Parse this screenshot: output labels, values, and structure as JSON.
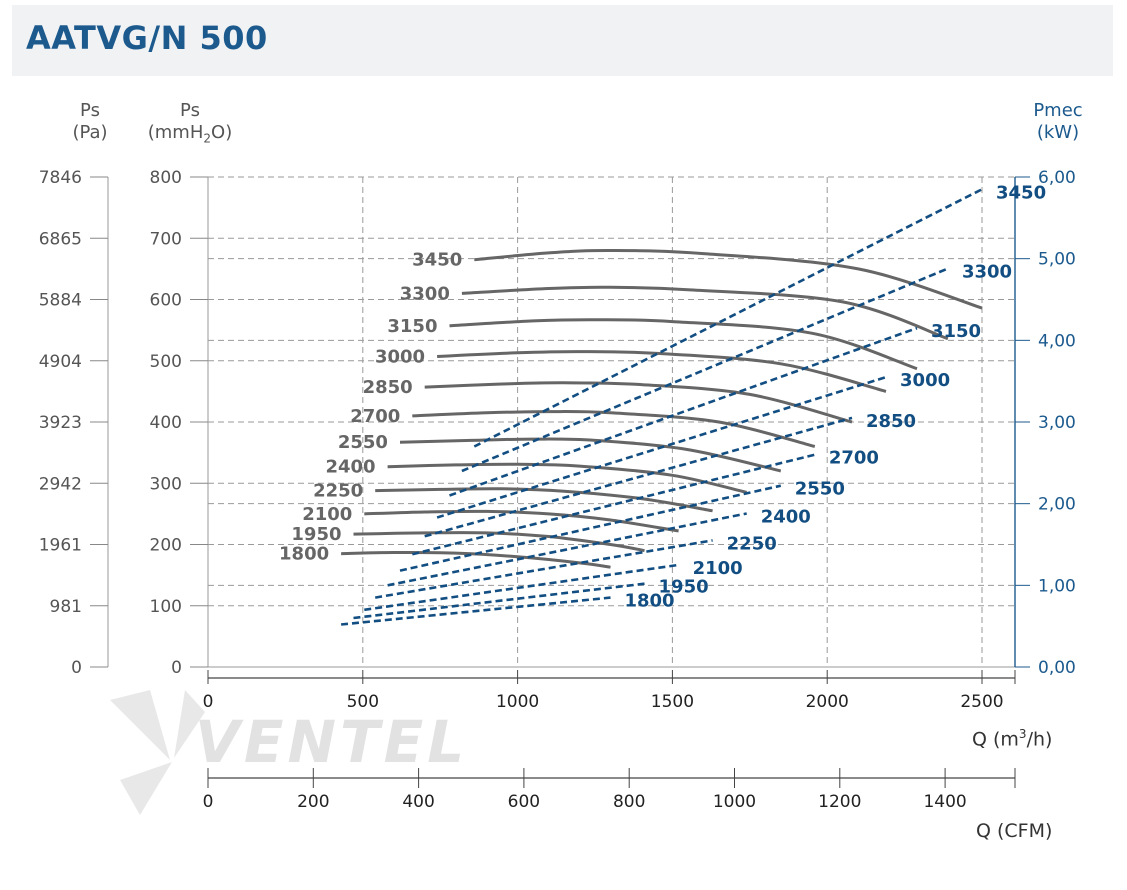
{
  "header": {
    "title": "AATVG/N 500"
  },
  "units": {
    "pa_name": "Ps",
    "pa_unit": "(Pa)",
    "mm_name": "Ps",
    "mm_unit_pre": "(mmH",
    "mm_unit_sub": "2",
    "mm_unit_post": "O)",
    "kw_name": "Pmec",
    "kw_unit": "(kW)",
    "q_m3h_pre": "Q (m",
    "q_m3h_sup": "3",
    "q_m3h_post": "/h)",
    "q_cfm": "Q (CFM)"
  },
  "watermark": {
    "text": "VENTEL"
  },
  "colors": {
    "title": "#1c5a8e",
    "pressure_curve": "#666666",
    "power_curve": "#124e82",
    "grid": "#9a9a9a"
  },
  "chart_data": {
    "type": "line",
    "title": "AATVG/N 500",
    "xlabel": "Q (m3/h)",
    "xlabel_secondary": "Q (CFM)",
    "ylabel_left_primary": "Ps (mmH2O)",
    "ylabel_left_secondary": "Ps (Pa)",
    "ylabel_right": "Pmec (kW)",
    "xlim": [
      0,
      2600
    ],
    "ylim": [
      0,
      800
    ],
    "y2lim": [
      0,
      6
    ],
    "grid": true,
    "x_ticks": [
      "0",
      "500",
      "1000",
      "1500",
      "2000",
      "2500"
    ],
    "x_tick_values": [
      0,
      500,
      1000,
      1500,
      2000,
      2500
    ],
    "cfm_ticks": [
      "0",
      "200",
      "400",
      "600",
      "800",
      "1000",
      "1200",
      "1400"
    ],
    "cfm_tick_values": [
      0,
      200,
      400,
      600,
      800,
      1000,
      1200,
      1400
    ],
    "y_mm_ticks": [
      "0",
      "100",
      "200",
      "300",
      "400",
      "500",
      "600",
      "700",
      "800"
    ],
    "y_mm_tick_values": [
      0,
      100,
      200,
      300,
      400,
      500,
      600,
      700,
      800
    ],
    "y_pa_ticks": [
      "0",
      "981",
      "1961",
      "2942",
      "3923",
      "4904",
      "5884",
      "6865",
      "7846"
    ],
    "y_kw_ticks": [
      "0,00",
      "1,00",
      "2,00",
      "3,00",
      "4,00",
      "5,00",
      "6,00"
    ],
    "y_kw_tick_values": [
      0,
      1,
      2,
      3,
      4,
      5,
      6
    ],
    "pressure_curves": [
      {
        "rpm": "1800",
        "q": [
          430,
          600,
          800,
          1000,
          1200,
          1300
        ],
        "ps": [
          185,
          187,
          186,
          180,
          170,
          163
        ]
      },
      {
        "rpm": "1950",
        "q": [
          470,
          700,
          900,
          1100,
          1300,
          1410
        ],
        "ps": [
          217,
          219,
          219,
          213,
          200,
          190
        ]
      },
      {
        "rpm": "2100",
        "q": [
          505,
          700,
          900,
          1100,
          1300,
          1520
        ],
        "ps": [
          250,
          253,
          254,
          250,
          240,
          222
        ]
      },
      {
        "rpm": "2250",
        "q": [
          540,
          750,
          950,
          1150,
          1400,
          1630
        ],
        "ps": [
          288,
          290,
          291,
          287,
          275,
          255
        ]
      },
      {
        "rpm": "2400",
        "q": [
          580,
          800,
          1000,
          1200,
          1500,
          1740
        ],
        "ps": [
          327,
          330,
          331,
          328,
          313,
          285
        ]
      },
      {
        "rpm": "2550",
        "q": [
          620,
          850,
          1050,
          1250,
          1550,
          1850
        ],
        "ps": [
          367,
          370,
          372,
          370,
          355,
          320
        ]
      },
      {
        "rpm": "2700",
        "q": [
          660,
          900,
          1100,
          1300,
          1650,
          1960
        ],
        "ps": [
          410,
          415,
          417,
          415,
          400,
          360
        ]
      },
      {
        "rpm": "2850",
        "q": [
          700,
          950,
          1150,
          1400,
          1750,
          2080
        ],
        "ps": [
          457,
          462,
          464,
          461,
          445,
          400
        ]
      },
      {
        "rpm": "3000",
        "q": [
          740,
          1000,
          1200,
          1450,
          1850,
          2190
        ],
        "ps": [
          507,
          513,
          515,
          512,
          495,
          450
        ]
      },
      {
        "rpm": "3150",
        "q": [
          780,
          1050,
          1250,
          1500,
          1950,
          2290
        ],
        "ps": [
          557,
          565,
          567,
          564,
          545,
          487
        ]
      },
      {
        "rpm": "3300",
        "q": [
          820,
          1100,
          1300,
          1550,
          2050,
          2390
        ],
        "ps": [
          610,
          618,
          620,
          616,
          596,
          536
        ]
      },
      {
        "rpm": "3450",
        "q": [
          860,
          1100,
          1300,
          1600,
          2100,
          2500
        ],
        "ps": [
          665,
          676,
          680,
          675,
          650,
          586
        ]
      }
    ],
    "power_curves": [
      {
        "rpm": "1800",
        "q": [
          430,
          1300
        ],
        "kw": [
          0.52,
          0.85
        ]
      },
      {
        "rpm": "1950",
        "q": [
          470,
          1410
        ],
        "kw": [
          0.6,
          1.02
        ]
      },
      {
        "rpm": "2100",
        "q": [
          505,
          1520
        ],
        "kw": [
          0.7,
          1.25
        ]
      },
      {
        "rpm": "2250",
        "q": [
          540,
          1630
        ],
        "kw": [
          0.85,
          1.55
        ]
      },
      {
        "rpm": "2400",
        "q": [
          580,
          1740
        ],
        "kw": [
          1.0,
          1.88
        ]
      },
      {
        "rpm": "2550",
        "q": [
          620,
          1850
        ],
        "kw": [
          1.18,
          2.22
        ]
      },
      {
        "rpm": "2700",
        "q": [
          660,
          1960
        ],
        "kw": [
          1.38,
          2.6
        ]
      },
      {
        "rpm": "2850",
        "q": [
          700,
          2080
        ],
        "kw": [
          1.6,
          3.05
        ]
      },
      {
        "rpm": "3000",
        "q": [
          740,
          2190
        ],
        "kw": [
          1.83,
          3.55
        ]
      },
      {
        "rpm": "3150",
        "q": [
          780,
          2290
        ],
        "kw": [
          2.1,
          4.15
        ]
      },
      {
        "rpm": "3300",
        "q": [
          820,
          2390
        ],
        "kw": [
          2.4,
          4.88
        ]
      },
      {
        "rpm": "3450",
        "q": [
          860,
          2500
        ],
        "kw": [
          2.7,
          5.85
        ]
      }
    ]
  }
}
